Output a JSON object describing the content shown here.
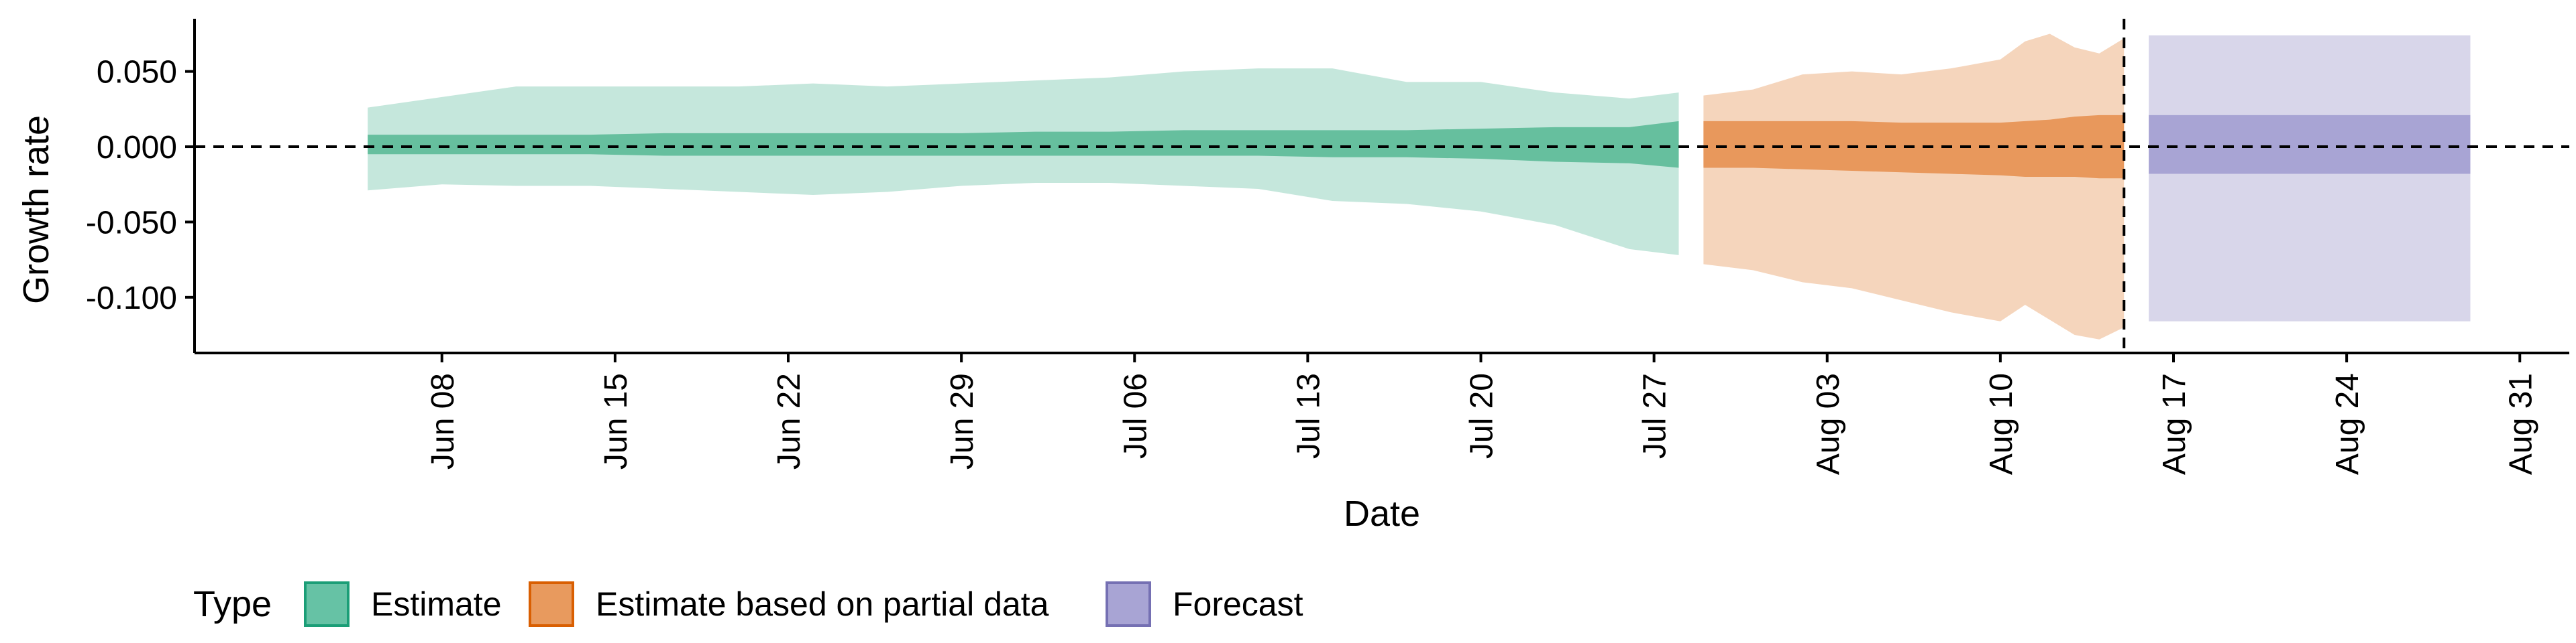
{
  "chart_data": {
    "type": "area",
    "xlabel": "Date",
    "ylabel": "Growth rate",
    "x_range": [
      "2020-05-29",
      "2020-09-02"
    ],
    "ylim": [
      -0.137,
      0.085
    ],
    "y_ticks": [
      0.05,
      0.0,
      -0.05,
      -0.1
    ],
    "y_tick_labels": [
      "0.050",
      "0.000",
      "-0.050",
      "-0.100"
    ],
    "x_ticks": [
      {
        "date": "2020-06-08",
        "label": "Jun 08"
      },
      {
        "date": "2020-06-15",
        "label": "Jun 15"
      },
      {
        "date": "2020-06-22",
        "label": "Jun 22"
      },
      {
        "date": "2020-06-29",
        "label": "Jun 29"
      },
      {
        "date": "2020-07-06",
        "label": "Jul 06"
      },
      {
        "date": "2020-07-13",
        "label": "Jul 13"
      },
      {
        "date": "2020-07-20",
        "label": "Jul 20"
      },
      {
        "date": "2020-07-27",
        "label": "Jul 27"
      },
      {
        "date": "2020-08-03",
        "label": "Aug 03"
      },
      {
        "date": "2020-08-10",
        "label": "Aug 10"
      },
      {
        "date": "2020-08-17",
        "label": "Aug 17"
      },
      {
        "date": "2020-08-24",
        "label": "Aug 24"
      },
      {
        "date": "2020-08-31",
        "label": "Aug 31"
      }
    ],
    "grid": false,
    "reference_lines": [
      {
        "axis": "y",
        "value": 0,
        "style": "dashed"
      },
      {
        "axis": "x",
        "value": "2020-08-15",
        "style": "dashed"
      }
    ],
    "legend": {
      "title": "Type",
      "position": "bottom-left",
      "entries": [
        {
          "label": "Estimate",
          "color": "#66c2a5",
          "border": "#1b9e77"
        },
        {
          "label": "Estimate based on partial data",
          "color": "#e89a5e",
          "border": "#d95f02"
        },
        {
          "label": "Forecast",
          "color": "#a8a4d4",
          "border": "#7570b3"
        }
      ]
    },
    "series": [
      {
        "name": "Estimate",
        "outer_color": "#c5e7dc",
        "inner_color": "#66bf9e",
        "x": [
          "2020-06-05",
          "2020-06-08",
          "2020-06-11",
          "2020-06-14",
          "2020-06-17",
          "2020-06-20",
          "2020-06-23",
          "2020-06-26",
          "2020-06-29",
          "2020-07-02",
          "2020-07-05",
          "2020-07-08",
          "2020-07-11",
          "2020-07-14",
          "2020-07-17",
          "2020-07-20",
          "2020-07-23",
          "2020-07-26",
          "2020-07-28"
        ],
        "outer_upper": [
          0.026,
          0.033,
          0.04,
          0.04,
          0.04,
          0.04,
          0.042,
          0.04,
          0.042,
          0.044,
          0.046,
          0.05,
          0.052,
          0.052,
          0.043,
          0.043,
          0.036,
          0.032,
          0.036
        ],
        "outer_lower": [
          -0.029,
          -0.025,
          -0.026,
          -0.026,
          -0.028,
          -0.03,
          -0.032,
          -0.03,
          -0.026,
          -0.024,
          -0.024,
          -0.026,
          -0.028,
          -0.036,
          -0.038,
          -0.043,
          -0.052,
          -0.068,
          -0.072
        ],
        "inner_upper": [
          0.008,
          0.008,
          0.008,
          0.008,
          0.009,
          0.009,
          0.009,
          0.009,
          0.009,
          0.01,
          0.01,
          0.011,
          0.011,
          0.011,
          0.011,
          0.012,
          0.013,
          0.013,
          0.017
        ],
        "inner_lower": [
          -0.005,
          -0.005,
          -0.005,
          -0.005,
          -0.006,
          -0.006,
          -0.006,
          -0.006,
          -0.006,
          -0.006,
          -0.006,
          -0.006,
          -0.006,
          -0.007,
          -0.007,
          -0.008,
          -0.01,
          -0.011,
          -0.014
        ]
      },
      {
        "name": "Estimate based on partial data",
        "outer_color": "#f5d5bc",
        "inner_color": "#e8985c",
        "x": [
          "2020-07-29",
          "2020-07-31",
          "2020-08-02",
          "2020-08-04",
          "2020-08-06",
          "2020-08-08",
          "2020-08-10",
          "2020-08-11",
          "2020-08-12",
          "2020-08-13",
          "2020-08-14",
          "2020-08-15"
        ],
        "outer_upper": [
          0.034,
          0.038,
          0.048,
          0.05,
          0.048,
          0.052,
          0.058,
          0.07,
          0.075,
          0.066,
          0.062,
          0.072
        ],
        "outer_lower": [
          -0.078,
          -0.082,
          -0.09,
          -0.094,
          -0.102,
          -0.11,
          -0.116,
          -0.105,
          -0.115,
          -0.125,
          -0.128,
          -0.12
        ],
        "inner_upper": [
          0.017,
          0.017,
          0.017,
          0.017,
          0.016,
          0.016,
          0.016,
          0.017,
          0.018,
          0.02,
          0.021,
          0.021
        ],
        "inner_lower": [
          -0.014,
          -0.014,
          -0.015,
          -0.016,
          -0.017,
          -0.018,
          -0.019,
          -0.02,
          -0.02,
          -0.02,
          -0.021,
          -0.021
        ]
      },
      {
        "name": "Forecast",
        "outer_color": "#d8d6ea",
        "inner_color": "#a8a4d4",
        "x": [
          "2020-08-16",
          "2020-08-29"
        ],
        "outer_upper": [
          0.074,
          0.074
        ],
        "outer_lower": [
          -0.116,
          -0.116
        ],
        "inner_upper": [
          0.021,
          0.021
        ],
        "inner_lower": [
          -0.018,
          -0.018
        ]
      }
    ]
  }
}
